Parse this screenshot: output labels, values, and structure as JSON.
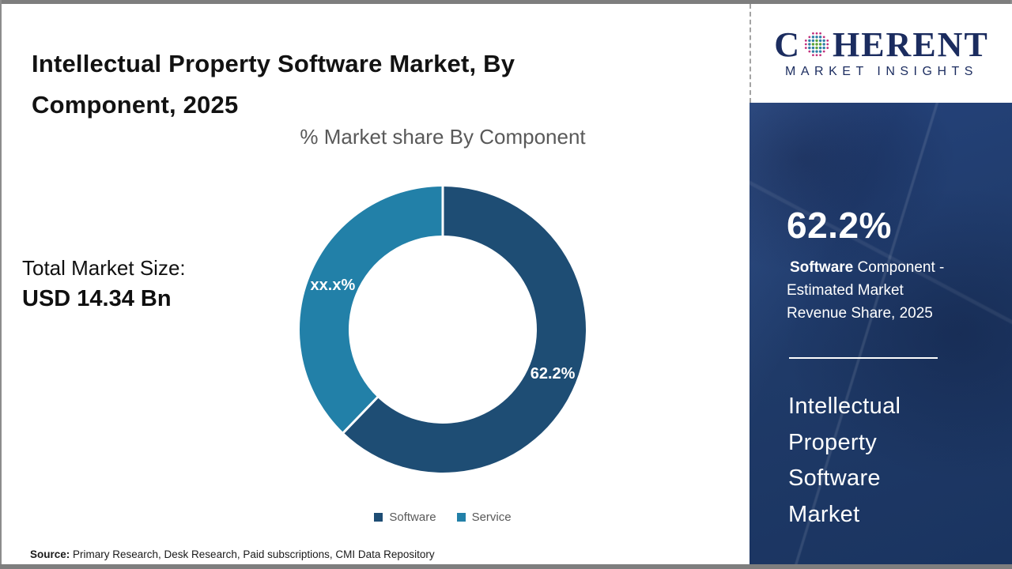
{
  "header": {
    "title_lines": [
      "Intellectual Property Software Market, By",
      "Component, 2025"
    ]
  },
  "logo": {
    "name_prefix": "C",
    "name_suffix": "HERENT",
    "subtitle": "MARKET INSIGHTS",
    "brand_color": "#1B2C5F",
    "globe_icon": "dotted-globe",
    "globe_colors": {
      "core": "#5ba338",
      "mid": "#2f7fa6",
      "outer": "#c2307c"
    }
  },
  "chart_data": {
    "type": "pie",
    "donut": true,
    "title": "% Market share By Component",
    "categories": [
      "Software",
      "Service"
    ],
    "values": [
      62.2,
      37.8
    ],
    "slice_labels": [
      "62.2%",
      "xx.x%"
    ],
    "colors": [
      "#1e4d74",
      "#2280a8"
    ],
    "start_angle_deg": 0,
    "direction": "clockwise",
    "legend_position": "bottom"
  },
  "market_size": {
    "label": "Total Market Size:",
    "value": "USD 14.34 Bn"
  },
  "sidebar": {
    "background_color": "#1f3a68",
    "stat_value": "62.2%",
    "stat_desc_bold": "Software",
    "stat_desc_rest": " Component - Estimated Market Revenue Share, 2025",
    "market_name_lines": [
      "Intellectual",
      "Property",
      "Software",
      "Market"
    ]
  },
  "footer": {
    "source_label": "Source:",
    "source_text": " Primary Research, Desk Research, Paid subscriptions, CMI Data Repository"
  }
}
